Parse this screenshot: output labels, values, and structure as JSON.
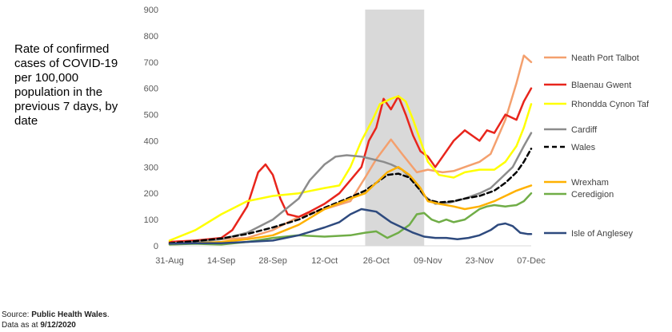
{
  "side_title": "Rate of confirmed cases of COVID-19 per 100,000 population in the previous 7 days, by date",
  "source": {
    "prefix": "Source: ",
    "org": "Public Health Wales",
    "suffix": ".",
    "date_prefix": "Data as at ",
    "date": "9/12/2020"
  },
  "chart_data": {
    "type": "line",
    "title": "Rate of confirmed cases of COVID-19 per 100,000 population in the previous 7 days, by date",
    "xlabel": "",
    "ylabel": "",
    "ylim": [
      0,
      900
    ],
    "yticks": [
      0,
      100,
      200,
      300,
      400,
      500,
      600,
      700,
      800,
      900
    ],
    "xlim": [
      0,
      98
    ],
    "xticks": [
      {
        "x": 0,
        "label": "31-Aug"
      },
      {
        "x": 14,
        "label": "14-Sep"
      },
      {
        "x": 28,
        "label": "28-Sep"
      },
      {
        "x": 42,
        "label": "12-Oct"
      },
      {
        "x": 56,
        "label": "26-Oct"
      },
      {
        "x": 70,
        "label": "09-Nov"
      },
      {
        "x": 84,
        "label": "23-Nov"
      },
      {
        "x": 98,
        "label": "07-Dec"
      }
    ],
    "shaded_period": [
      53,
      69
    ],
    "series": [
      {
        "name": "Neath Port Talbot",
        "color": "#F4A06E",
        "dash": false,
        "x": [
          0,
          7,
          14,
          21,
          28,
          35,
          42,
          49,
          53,
          56,
          60,
          63,
          67,
          70,
          74,
          77,
          80,
          84,
          87,
          91,
          94,
          96,
          98
        ],
        "y": [
          15,
          20,
          25,
          30,
          60,
          110,
          140,
          170,
          260,
          330,
          405,
          350,
          280,
          290,
          280,
          285,
          300,
          320,
          350,
          480,
          620,
          725,
          700
        ]
      },
      {
        "name": "Blaenau Gwent",
        "color": "#E8251C",
        "dash": false,
        "x": [
          0,
          7,
          14,
          17,
          21,
          24,
          26,
          28,
          30,
          32,
          35,
          38,
          42,
          46,
          49,
          52,
          54,
          56,
          58,
          60,
          62,
          64,
          66,
          68,
          70,
          72,
          74,
          77,
          80,
          82,
          84,
          86,
          88,
          91,
          94,
          96,
          98
        ],
        "y": [
          15,
          20,
          30,
          60,
          150,
          280,
          310,
          270,
          180,
          120,
          110,
          130,
          160,
          200,
          250,
          300,
          400,
          450,
          560,
          520,
          570,
          500,
          420,
          360,
          340,
          300,
          340,
          400,
          440,
          420,
          400,
          440,
          430,
          500,
          480,
          550,
          600
        ]
      },
      {
        "name": "Rhondda Cynon Taf",
        "color": "#FFFF00",
        "dash": false,
        "x": [
          0,
          7,
          14,
          21,
          28,
          35,
          42,
          46,
          49,
          52,
          55,
          57,
          60,
          62,
          64,
          66,
          68,
          70,
          73,
          77,
          80,
          84,
          88,
          91,
          94,
          96,
          98
        ],
        "y": [
          20,
          60,
          120,
          170,
          190,
          200,
          220,
          230,
          300,
          400,
          480,
          540,
          560,
          570,
          550,
          480,
          400,
          320,
          270,
          260,
          280,
          290,
          290,
          320,
          380,
          450,
          540
        ]
      },
      {
        "name": "Cardiff",
        "color": "#8C8C8C",
        "dash": false,
        "x": [
          0,
          7,
          14,
          21,
          28,
          35,
          38,
          42,
          45,
          48,
          52,
          55,
          58,
          60,
          63,
          66,
          69,
          72,
          76,
          80,
          84,
          87,
          90,
          93,
          96,
          98
        ],
        "y": [
          10,
          15,
          25,
          50,
          100,
          180,
          250,
          310,
          340,
          345,
          340,
          330,
          320,
          310,
          290,
          250,
          190,
          160,
          165,
          180,
          200,
          220,
          260,
          300,
          380,
          430
        ]
      },
      {
        "name": "Wales",
        "color": "#000000",
        "dash": true,
        "x": [
          0,
          7,
          14,
          21,
          28,
          35,
          42,
          49,
          53,
          56,
          59,
          62,
          65,
          68,
          70,
          73,
          77,
          80,
          84,
          88,
          91,
          94,
          96,
          98
        ],
        "y": [
          10,
          18,
          28,
          45,
          70,
          100,
          145,
          185,
          210,
          240,
          270,
          275,
          260,
          210,
          175,
          165,
          170,
          180,
          190,
          210,
          240,
          280,
          320,
          370
        ]
      },
      {
        "name": "Wrexham",
        "color": "#FFB100",
        "dash": false,
        "x": [
          0,
          7,
          14,
          21,
          28,
          35,
          42,
          49,
          53,
          56,
          59,
          62,
          65,
          68,
          70,
          73,
          77,
          80,
          84,
          88,
          91,
          94,
          96,
          98
        ],
        "y": [
          5,
          10,
          15,
          25,
          40,
          80,
          140,
          180,
          200,
          240,
          280,
          300,
          270,
          220,
          170,
          160,
          150,
          140,
          150,
          170,
          190,
          210,
          220,
          230
        ]
      },
      {
        "name": "Ceredigion",
        "color": "#70AD47",
        "dash": false,
        "x": [
          0,
          7,
          14,
          21,
          28,
          35,
          42,
          49,
          53,
          56,
          59,
          62,
          65,
          67,
          69,
          71,
          73,
          75,
          77,
          80,
          84,
          86,
          88,
          91,
          94,
          96,
          98
        ],
        "y": [
          5,
          8,
          5,
          15,
          30,
          40,
          35,
          40,
          50,
          55,
          30,
          50,
          80,
          120,
          125,
          100,
          90,
          100,
          90,
          100,
          140,
          150,
          155,
          150,
          155,
          170,
          200
        ]
      },
      {
        "name": "Isle of Anglesey",
        "color": "#2E4A7E",
        "dash": false,
        "x": [
          0,
          7,
          14,
          21,
          28,
          35,
          42,
          46,
          49,
          52,
          54,
          56,
          58,
          60,
          63,
          66,
          69,
          72,
          75,
          78,
          81,
          84,
          87,
          89,
          91,
          93,
          95,
          97,
          98
        ],
        "y": [
          8,
          10,
          10,
          15,
          20,
          40,
          70,
          90,
          120,
          140,
          135,
          130,
          110,
          90,
          70,
          50,
          35,
          30,
          30,
          25,
          30,
          40,
          60,
          80,
          85,
          75,
          50,
          45,
          45
        ]
      }
    ],
    "legend": [
      {
        "name": "Neath Port Talbot",
        "color": "#F4A06E",
        "dash": false
      },
      {
        "name": "Blaenau Gwent",
        "color": "#E8251C",
        "dash": false
      },
      {
        "name": "Rhondda Cynon Taf",
        "color": "#FFFF00",
        "dash": false
      },
      {
        "name": "Cardiff",
        "color": "#8C8C8C",
        "dash": false
      },
      {
        "name": "Wales",
        "color": "#000000",
        "dash": true
      },
      {
        "name": "Wrexham",
        "color": "#FFB100",
        "dash": false
      },
      {
        "name": "Ceredigion",
        "color": "#70AD47",
        "dash": false
      },
      {
        "name": "Isle of Anglesey",
        "color": "#2E4A7E",
        "dash": false
      }
    ]
  }
}
